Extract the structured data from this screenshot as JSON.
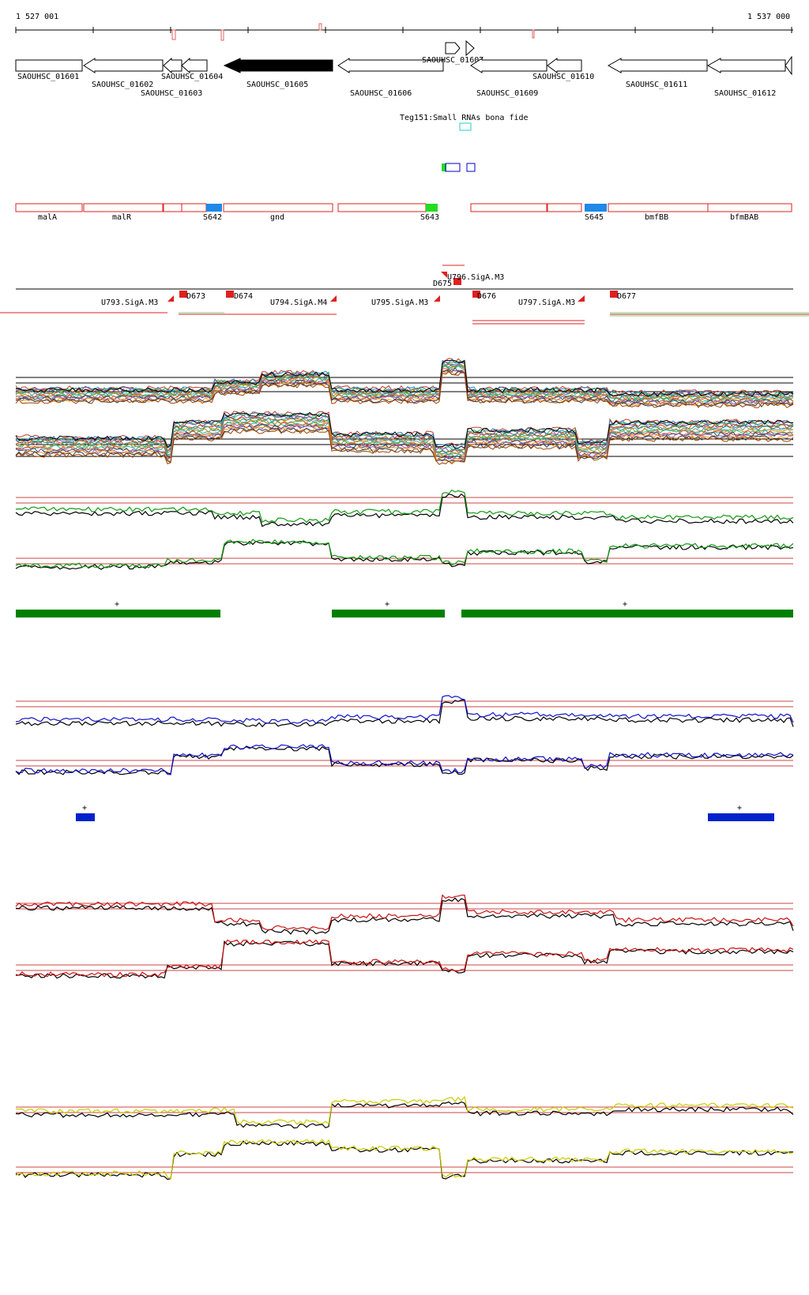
{
  "ruler": {
    "start": "1 527 001",
    "end": "1 537 000"
  },
  "genes": [
    {
      "name": "SAOUHSC_01601",
      "fill": "#ffffff"
    },
    {
      "name": "SAOUHSC_01602",
      "fill": "#ffffff"
    },
    {
      "name": "SAOUHSC_01603",
      "fill": "#ffffff"
    },
    {
      "name": "SAOUHSC_01604",
      "fill": "#ffffff"
    },
    {
      "name": "SAOUHSC_01605",
      "fill": "#000000"
    },
    {
      "name": "SAOUHSC_01606",
      "fill": "#ffffff"
    },
    {
      "name": "SAOUHSC_01607",
      "fill": "#ffffff"
    },
    {
      "name": "SAOUHSC_01609",
      "fill": "#ffffff"
    },
    {
      "name": "SAOUHSC_01610",
      "fill": "#ffffff"
    },
    {
      "name": "SAOUHSC_01611",
      "fill": "#ffffff"
    },
    {
      "name": "SAOUHSC_01612",
      "fill": "#ffffff"
    }
  ],
  "small_rna_label": "Teg151:Small RNAs bona fide",
  "features": [
    {
      "name": "malA"
    },
    {
      "name": "malR"
    },
    {
      "name": "S642"
    },
    {
      "name": "gnd"
    },
    {
      "name": "S643"
    },
    {
      "name": "S645"
    },
    {
      "name": "bmfBB"
    },
    {
      "name": "bfmBAB"
    }
  ],
  "promoters": [
    {
      "name": "U793.SigA.M3"
    },
    {
      "name": "D673"
    },
    {
      "name": "D674"
    },
    {
      "name": "U794.SigA.M4"
    },
    {
      "name": "U795.SigA.M3"
    },
    {
      "name": "U796.SigA.M3"
    },
    {
      "name": "D675"
    },
    {
      "name": "D676"
    },
    {
      "name": "U797.SigA.M3"
    },
    {
      "name": "D677"
    }
  ],
  "segment_marks": {
    "plus": "+"
  },
  "colors": {
    "gene_outline": "#000000",
    "feature_outline": "#e02020",
    "sRNA_green": "#22dd22",
    "sRNA_blue": "#1f88e8",
    "green_track": "#008000",
    "blue_track": "#0000cc",
    "red_track": "#cc0000",
    "yellow_track": "#cccc00"
  }
}
